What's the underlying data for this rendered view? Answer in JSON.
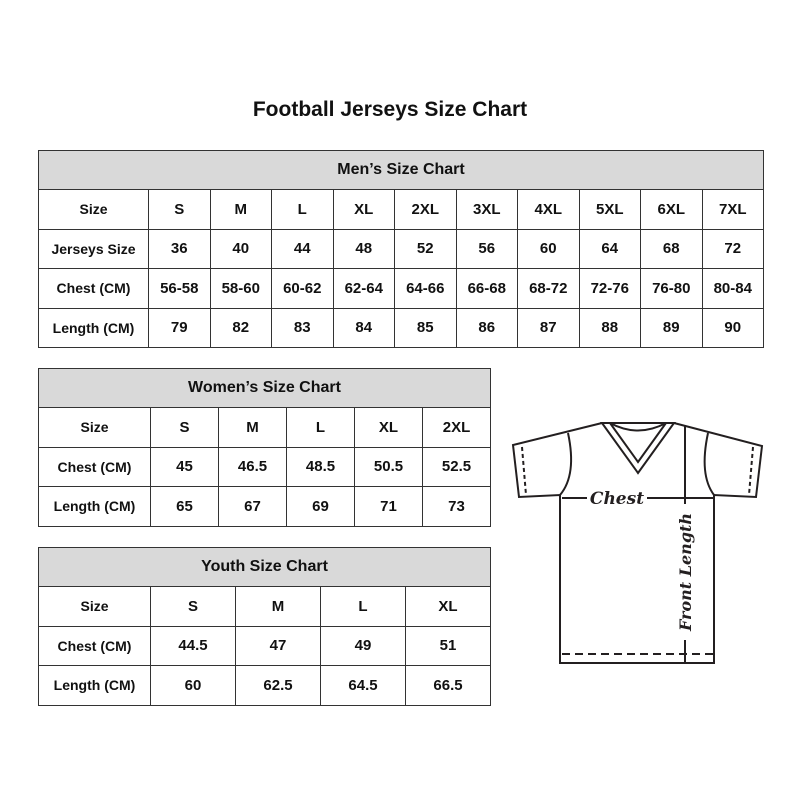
{
  "title": "Football Jerseys Size Chart",
  "men": {
    "heading": "Men’s Size Chart",
    "rows": [
      [
        "Size",
        "S",
        "M",
        "L",
        "XL",
        "2XL",
        "3XL",
        "4XL",
        "5XL",
        "6XL",
        "7XL"
      ],
      [
        "Jerseys Size",
        "36",
        "40",
        "44",
        "48",
        "52",
        "56",
        "60",
        "64",
        "68",
        "72"
      ],
      [
        "Chest (CM)",
        "56-58",
        "58-60",
        "60-62",
        "62-64",
        "64-66",
        "66-68",
        "68-72",
        "72-76",
        "76-80",
        "80-84"
      ],
      [
        "Length (CM)",
        "79",
        "82",
        "83",
        "84",
        "85",
        "86",
        "87",
        "88",
        "89",
        "90"
      ]
    ]
  },
  "women": {
    "heading": "Women’s Size Chart",
    "rows": [
      [
        "Size",
        "S",
        "M",
        "L",
        "XL",
        "2XL"
      ],
      [
        "Chest (CM)",
        "45",
        "46.5",
        "48.5",
        "50.5",
        "52.5"
      ],
      [
        "Length (CM)",
        "65",
        "67",
        "69",
        "71",
        "73"
      ]
    ]
  },
  "youth": {
    "heading": "Youth Size Chart",
    "rows": [
      [
        "Size",
        "S",
        "M",
        "L",
        "XL"
      ],
      [
        "Chest (CM)",
        "44.5",
        "47",
        "49",
        "51"
      ],
      [
        "Length (CM)",
        "60",
        "62.5",
        "64.5",
        "66.5"
      ]
    ]
  },
  "diagram": {
    "chest_label": "Chest",
    "length_label": "Front Length"
  },
  "colors": {
    "header_bg": "#d9d9d9",
    "border": "#333333"
  }
}
